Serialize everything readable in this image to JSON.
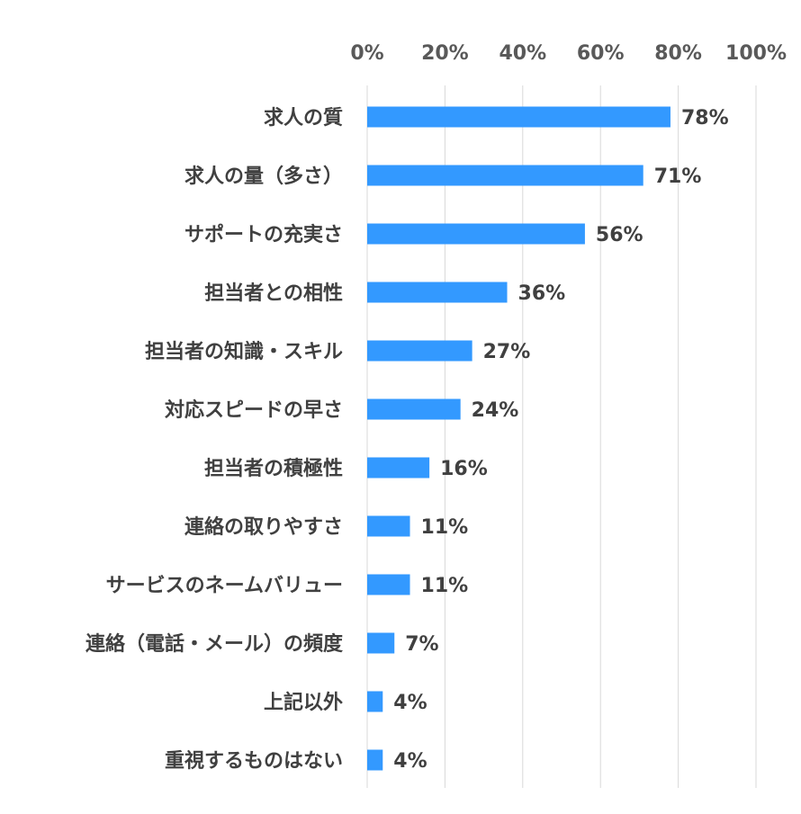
{
  "chart_data": {
    "type": "bar",
    "orientation": "horizontal",
    "categories": [
      "求人の質",
      "求人の量（多さ）",
      "サポートの充実さ",
      "担当者との相性",
      "担当者の知識・スキル",
      "対応スピードの早さ",
      "担当者の積極性",
      "連絡の取りやすさ",
      "サービスのネームバリュー",
      "連絡（電話・メール）の頻度",
      "上記以外",
      "重視するものはない"
    ],
    "values": [
      78,
      71,
      56,
      36,
      27,
      24,
      16,
      11,
      11,
      7,
      4,
      4
    ],
    "value_labels": [
      "78%",
      "71%",
      "56%",
      "36%",
      "27%",
      "24%",
      "16%",
      "11%",
      "11%",
      "7%",
      "4%",
      "4%"
    ],
    "xlim": [
      0,
      100
    ],
    "x_ticks": [
      0,
      20,
      40,
      60,
      80,
      100
    ],
    "x_tick_labels": [
      "0%",
      "20%",
      "40%",
      "60%",
      "80%",
      "100%"
    ],
    "x_axis_position": "top",
    "grid": true,
    "bar_color": "#3399FF",
    "grid_color": "#D9D9D9"
  }
}
